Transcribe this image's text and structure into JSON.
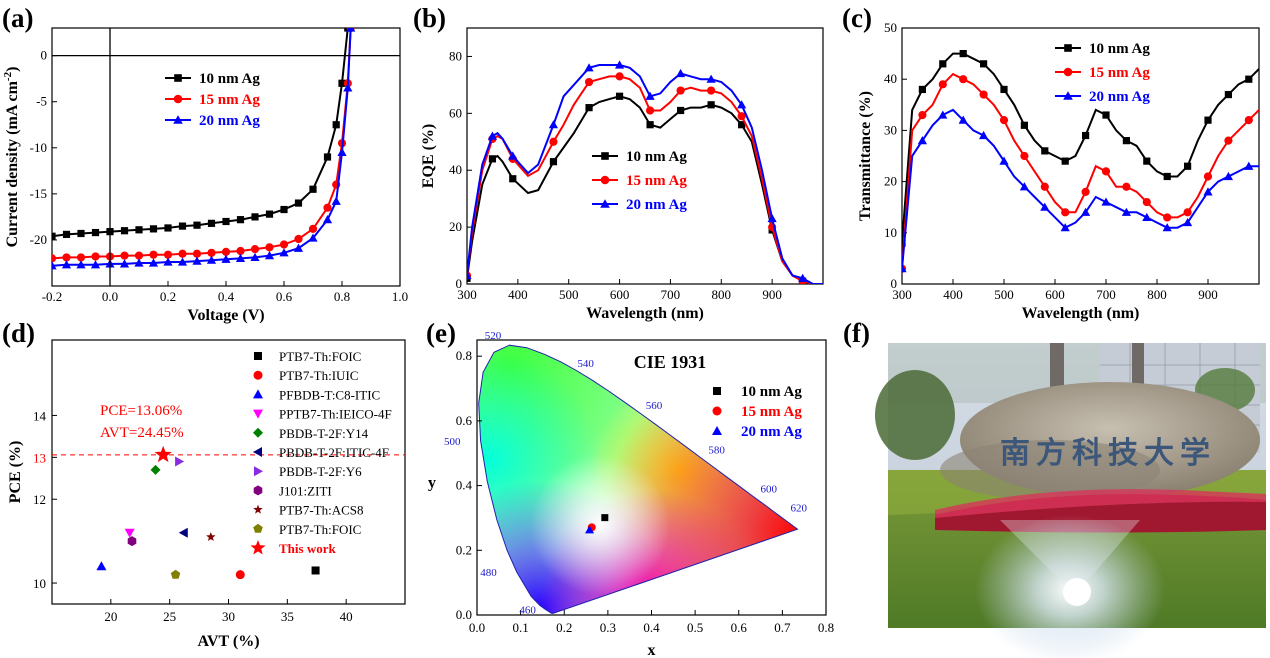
{
  "panel_labels": [
    "(a)",
    "(b)",
    "(c)",
    "(d)",
    "(e)",
    "(f)"
  ],
  "colors": {
    "s10": "#000000",
    "s15": "#ff0000",
    "s20": "#0000ff"
  },
  "chart_data": [
    {
      "id": "a",
      "type": "line",
      "xlabel": "Voltage (V)",
      "ylabel": "Current density (mA cm",
      "ylabel_sup": "-2",
      "ylabel_close": ")",
      "xlim": [
        -0.2,
        1.0
      ],
      "ylim": [
        -25,
        3
      ],
      "xticks": [
        "-0.2",
        "0.0",
        "0.2",
        "0.4",
        "0.6",
        "0.8",
        "1.0"
      ],
      "yticks": [
        "0",
        "-5",
        "-10",
        "-15",
        "-20"
      ],
      "legend": "top-right",
      "series": [
        {
          "name": "10 nm  Ag",
          "x": [
            -0.2,
            -0.15,
            -0.1,
            -0.05,
            0,
            0.05,
            0.1,
            0.15,
            0.2,
            0.25,
            0.3,
            0.35,
            0.4,
            0.45,
            0.5,
            0.55,
            0.6,
            0.65,
            0.7,
            0.75,
            0.78,
            0.8,
            0.82
          ],
          "y": [
            -19.6,
            -19.4,
            -19.3,
            -19.2,
            -19.1,
            -19.0,
            -18.9,
            -18.8,
            -18.7,
            -18.5,
            -18.4,
            -18.2,
            -18.0,
            -17.8,
            -17.5,
            -17.2,
            -16.7,
            -16.0,
            -14.5,
            -11.0,
            -7.5,
            -3.0,
            3.0
          ]
        },
        {
          "name": "15 nm  Ag",
          "x": [
            -0.2,
            -0.15,
            -0.1,
            -0.05,
            0,
            0.05,
            0.1,
            0.15,
            0.2,
            0.25,
            0.3,
            0.35,
            0.4,
            0.45,
            0.5,
            0.55,
            0.6,
            0.65,
            0.7,
            0.75,
            0.78,
            0.8,
            0.82,
            0.83
          ],
          "y": [
            -22.0,
            -21.9,
            -21.9,
            -21.8,
            -21.8,
            -21.7,
            -21.7,
            -21.6,
            -21.6,
            -21.5,
            -21.5,
            -21.4,
            -21.3,
            -21.2,
            -21.0,
            -20.8,
            -20.5,
            -19.9,
            -18.8,
            -16.5,
            -14.0,
            -9.5,
            -3.0,
            3.0
          ]
        },
        {
          "name": "20 nm  Ag",
          "x": [
            -0.2,
            -0.15,
            -0.1,
            -0.05,
            0,
            0.05,
            0.1,
            0.15,
            0.2,
            0.25,
            0.3,
            0.35,
            0.4,
            0.45,
            0.5,
            0.55,
            0.6,
            0.65,
            0.7,
            0.75,
            0.78,
            0.8,
            0.82,
            0.83
          ],
          "y": [
            -22.8,
            -22.7,
            -22.7,
            -22.7,
            -22.6,
            -22.6,
            -22.5,
            -22.5,
            -22.4,
            -22.4,
            -22.3,
            -22.2,
            -22.1,
            -22.0,
            -21.9,
            -21.7,
            -21.4,
            -20.9,
            -19.8,
            -17.8,
            -15.8,
            -10.5,
            -3.5,
            3.0
          ]
        }
      ]
    },
    {
      "id": "b",
      "type": "line",
      "xlabel": "Wavelength (nm)",
      "ylabel": "EQE (%)",
      "xlim": [
        300,
        1000
      ],
      "ylim": [
        0,
        90
      ],
      "xticks": [
        "300",
        "400",
        "500",
        "600",
        "700",
        "800",
        "900"
      ],
      "yticks": [
        "0",
        "20",
        "40",
        "60",
        "80"
      ],
      "legend": "lower-right",
      "series": [
        {
          "name": "10 nm Ag",
          "x": [
            300,
            310,
            330,
            350,
            360,
            370,
            390,
            420,
            440,
            470,
            490,
            510,
            540,
            560,
            580,
            600,
            620,
            640,
            660,
            680,
            700,
            720,
            740,
            760,
            780,
            800,
            820,
            840,
            860,
            880,
            900,
            920,
            940,
            960,
            980,
            1000
          ],
          "y": [
            2,
            15,
            35,
            44,
            45,
            43,
            37,
            32,
            33,
            43,
            48,
            53,
            62,
            64,
            65,
            66,
            65,
            62,
            56,
            55,
            58,
            61,
            62,
            62,
            63,
            62,
            60,
            56,
            50,
            35,
            19,
            8,
            3,
            1,
            0,
            0
          ]
        },
        {
          "name": "15 nm Ag",
          "x": [
            300,
            310,
            330,
            350,
            360,
            370,
            390,
            420,
            440,
            470,
            490,
            510,
            540,
            560,
            580,
            600,
            620,
            640,
            660,
            680,
            700,
            720,
            740,
            760,
            780,
            800,
            820,
            840,
            860,
            880,
            900,
            920,
            940,
            960,
            980,
            1000
          ],
          "y": [
            3,
            18,
            40,
            51,
            52,
            51,
            44,
            38,
            40,
            50,
            56,
            63,
            71,
            72,
            73,
            73,
            72,
            69,
            61,
            61,
            64,
            68,
            69,
            68,
            68,
            67,
            64,
            59,
            52,
            37,
            20,
            8,
            3,
            1,
            0,
            0
          ]
        },
        {
          "name": "20 nm Ag",
          "x": [
            300,
            310,
            330,
            350,
            360,
            370,
            390,
            420,
            440,
            470,
            490,
            510,
            540,
            560,
            580,
            600,
            620,
            640,
            660,
            680,
            700,
            720,
            740,
            760,
            780,
            800,
            820,
            840,
            860,
            880,
            900,
            920,
            940,
            960,
            980,
            1000
          ],
          "y": [
            3,
            20,
            42,
            52,
            53,
            51,
            45,
            39,
            42,
            56,
            66,
            70,
            76,
            77,
            77,
            77,
            76,
            73,
            66,
            67,
            71,
            74,
            73,
            72,
            72,
            71,
            68,
            63,
            55,
            40,
            23,
            9,
            3,
            2,
            0,
            0
          ]
        }
      ]
    },
    {
      "id": "c",
      "type": "line",
      "xlabel": "Wavelength (nm)",
      "ylabel": "Transmittance (%)",
      "xlim": [
        300,
        1000
      ],
      "ylim": [
        0,
        50
      ],
      "xticks": [
        "300",
        "400",
        "500",
        "600",
        "700",
        "800",
        "900"
      ],
      "yticks": [
        "0",
        "10",
        "20",
        "30",
        "40",
        "50"
      ],
      "legend": "top-right",
      "series": [
        {
          "name": "10 nm Ag",
          "x": [
            300,
            320,
            340,
            360,
            380,
            400,
            420,
            440,
            460,
            480,
            500,
            520,
            540,
            560,
            580,
            600,
            620,
            640,
            660,
            680,
            700,
            720,
            740,
            760,
            780,
            800,
            820,
            840,
            860,
            880,
            900,
            920,
            940,
            960,
            980,
            1000
          ],
          "y": [
            8,
            34,
            38,
            40,
            43,
            45,
            45,
            44,
            43,
            41,
            38,
            35,
            31,
            28,
            26,
            25,
            24,
            25,
            29,
            34,
            33,
            30,
            28,
            27,
            24,
            22,
            21,
            21,
            23,
            28,
            32,
            35,
            37,
            39,
            40,
            42
          ]
        },
        {
          "name": "15 nm Ag",
          "x": [
            300,
            320,
            340,
            360,
            380,
            400,
            420,
            440,
            460,
            480,
            500,
            520,
            540,
            560,
            580,
            600,
            620,
            640,
            660,
            680,
            700,
            720,
            740,
            760,
            780,
            800,
            820,
            840,
            860,
            880,
            900,
            920,
            940,
            960,
            980,
            1000
          ],
          "y": [
            3,
            30,
            33,
            35,
            39,
            41,
            40,
            39,
            37,
            35,
            32,
            28,
            25,
            22,
            19,
            16,
            14,
            14,
            18,
            23,
            22,
            19,
            19,
            18,
            16,
            14,
            13,
            13,
            14,
            17,
            21,
            25,
            28,
            30,
            32,
            34
          ]
        },
        {
          "name": "20 nm Ag",
          "x": [
            300,
            320,
            340,
            360,
            380,
            400,
            420,
            440,
            460,
            480,
            500,
            520,
            540,
            560,
            580,
            600,
            620,
            640,
            660,
            680,
            700,
            720,
            740,
            760,
            780,
            800,
            820,
            840,
            860,
            880,
            900,
            920,
            940,
            960,
            980,
            1000
          ],
          "y": [
            3,
            25,
            28,
            31,
            33,
            34,
            32,
            30,
            29,
            27,
            24,
            21,
            19,
            17,
            15,
            13,
            11,
            12,
            14,
            17,
            16,
            15,
            14,
            14,
            13,
            12,
            11,
            11,
            12,
            15,
            18,
            20,
            21,
            22,
            23,
            23
          ]
        }
      ]
    },
    {
      "id": "d",
      "type": "scatter",
      "xlabel": "AVT (%)",
      "ylabel": "PCE (%)",
      "xlim": [
        15,
        45
      ],
      "ylim": [
        9.5,
        15.8
      ],
      "xticks": [
        "20",
        "25",
        "30",
        "35",
        "40"
      ],
      "yticks": [
        "10",
        "12",
        "13",
        "14"
      ],
      "ytick_values": [
        10,
        12,
        13,
        14
      ],
      "highlight_tick": "13",
      "ref_line_y": 13.06,
      "annotation": [
        "PCE=13.06%",
        "AVT=24.45%"
      ],
      "legend": "right",
      "series": [
        {
          "name": "PTB7-Th:FOIC",
          "marker": "square",
          "color": "#000000",
          "x": [
            37.4
          ],
          "y": [
            10.3
          ]
        },
        {
          "name": "PTB7-Th:IUIC",
          "marker": "circle",
          "color": "#ff0000",
          "x": [
            31.0
          ],
          "y": [
            10.2
          ]
        },
        {
          "name": "PFBDB-T:C8-ITIC",
          "marker": "tri-up",
          "color": "#0000ff",
          "x": [
            19.2
          ],
          "y": [
            10.4
          ]
        },
        {
          "name": "PPTB7-Th:IEICO-4F",
          "marker": "tri-down",
          "color": "#ff00ff",
          "x": [
            21.6
          ],
          "y": [
            11.2
          ]
        },
        {
          "name": "PBDB-T-2F:Y14",
          "marker": "diamond",
          "color": "#008000",
          "x": [
            23.8
          ],
          "y": [
            12.7
          ]
        },
        {
          "name": "PBDB-T-2F:ITIC-4F",
          "marker": "tri-left",
          "color": "#000080",
          "x": [
            26.2
          ],
          "y": [
            11.2
          ]
        },
        {
          "name": "PBDB-T-2F:Y6",
          "marker": "tri-right",
          "color": "#8a2be2",
          "x": [
            25.8
          ],
          "y": [
            12.9
          ]
        },
        {
          "name": "J101:ZITI",
          "marker": "hexagon",
          "color": "#800080",
          "x": [
            21.8
          ],
          "y": [
            11.0
          ]
        },
        {
          "name": "PTB7-Th:ACS8",
          "marker": "star",
          "color": "#800000",
          "x": [
            28.5
          ],
          "y": [
            11.1
          ]
        },
        {
          "name": "PTB7-Th:FOIC",
          "marker": "pentagon",
          "color": "#808000",
          "x": [
            25.5
          ],
          "y": [
            10.2
          ]
        },
        {
          "name": "This work",
          "marker": "star",
          "color": "#ff0000",
          "x": [
            24.45
          ],
          "y": [
            13.06
          ]
        }
      ]
    },
    {
      "id": "e",
      "type": "scatter",
      "title": "CIE 1931",
      "xlabel": "x",
      "ylabel": "y",
      "xlim": [
        0.0,
        0.8
      ],
      "ylim": [
        0.0,
        0.85
      ],
      "xticks": [
        "0.0",
        "0.1",
        "0.2",
        "0.3",
        "0.4",
        "0.5",
        "0.6",
        "0.7",
        "0.8"
      ],
      "yticks": [
        "0.0",
        "0.2",
        "0.4",
        "0.6",
        "0.8"
      ],
      "wavelength_labels": [
        {
          "label": "460",
          "x": 0.144,
          "y": 0.03
        },
        {
          "label": "480",
          "x": 0.091,
          "y": 0.133
        },
        {
          "label": "500",
          "x": 0.008,
          "y": 0.538
        },
        {
          "label": "520",
          "x": 0.074,
          "y": 0.834
        },
        {
          "label": "540",
          "x": 0.23,
          "y": 0.754
        },
        {
          "label": "560",
          "x": 0.373,
          "y": 0.624
        },
        {
          "label": "580",
          "x": 0.512,
          "y": 0.487
        },
        {
          "label": "600",
          "x": 0.627,
          "y": 0.372
        },
        {
          "label": "620",
          "x": 0.691,
          "y": 0.308
        }
      ],
      "legend": "top-right",
      "series": [
        {
          "name": "10 nm  Ag",
          "x": [
            0.293
          ],
          "y": [
            0.301
          ]
        },
        {
          "name": "15 nm  Ag",
          "x": [
            0.263
          ],
          "y": [
            0.271
          ]
        },
        {
          "name": "20 nm  Ag",
          "x": [
            0.258
          ],
          "y": [
            0.263
          ]
        }
      ]
    }
  ],
  "photo": {
    "sign_text": "南方科技大学"
  }
}
